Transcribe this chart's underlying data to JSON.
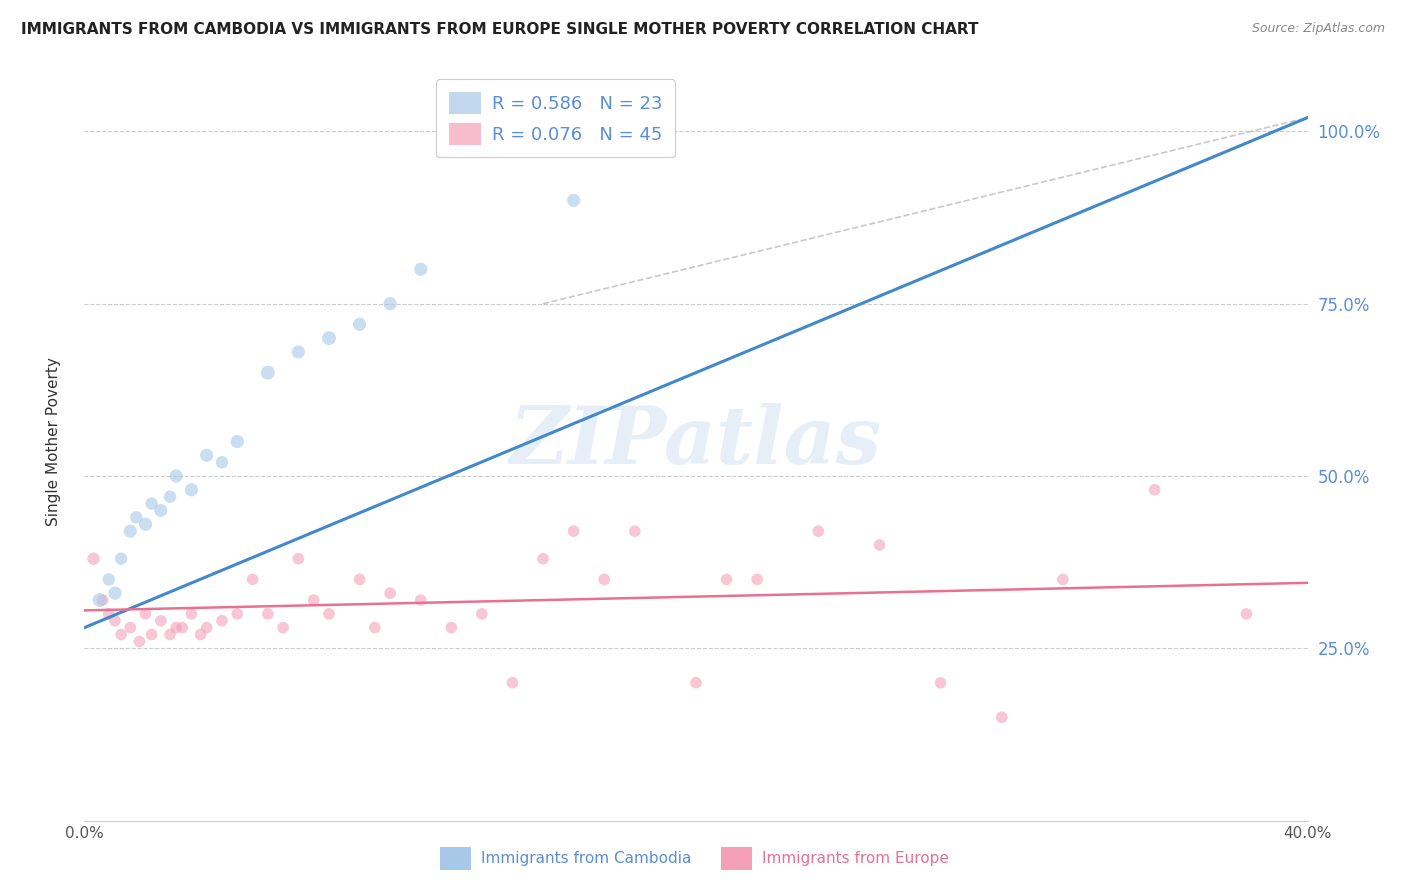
{
  "title": "IMMIGRANTS FROM CAMBODIA VS IMMIGRANTS FROM EUROPE SINGLE MOTHER POVERTY CORRELATION CHART",
  "source": "Source: ZipAtlas.com",
  "ylabel": "Single Mother Poverty",
  "right_yticks": [
    0.25,
    0.5,
    0.75,
    1.0
  ],
  "right_yticklabels": [
    "25.0%",
    "50.0%",
    "75.0%",
    "100.0%"
  ],
  "xlim": [
    0.0,
    0.4
  ],
  "ylim": [
    0.0,
    1.1
  ],
  "R_cambodia": 0.586,
  "N_cambodia": 23,
  "R_europe": 0.076,
  "N_europe": 45,
  "color_cambodia": "#a8c8e8",
  "color_europe": "#f4a0b8",
  "color_cambodia_line": "#4488cc",
  "color_europe_line": "#e87090",
  "color_diagonal": "#bbbbbb",
  "watermark": "ZIPatlas",
  "cambodia_x": [
    0.005,
    0.008,
    0.01,
    0.012,
    0.015,
    0.017,
    0.02,
    0.022,
    0.025,
    0.028,
    0.03,
    0.035,
    0.04,
    0.045,
    0.05,
    0.06,
    0.07,
    0.08,
    0.09,
    0.1,
    0.11,
    0.13,
    0.16
  ],
  "cambodia_y": [
    0.32,
    0.35,
    0.33,
    0.38,
    0.42,
    0.44,
    0.43,
    0.46,
    0.45,
    0.47,
    0.5,
    0.48,
    0.53,
    0.52,
    0.55,
    0.65,
    0.68,
    0.7,
    0.72,
    0.75,
    0.8,
    1.0,
    0.9
  ],
  "cambodia_sizes": [
    100,
    80,
    90,
    80,
    90,
    80,
    90,
    80,
    90,
    80,
    90,
    90,
    90,
    80,
    90,
    100,
    90,
    100,
    90,
    90,
    90,
    90,
    90
  ],
  "europe_x": [
    0.003,
    0.006,
    0.008,
    0.01,
    0.012,
    0.015,
    0.018,
    0.02,
    0.022,
    0.025,
    0.028,
    0.03,
    0.032,
    0.035,
    0.038,
    0.04,
    0.045,
    0.05,
    0.055,
    0.06,
    0.065,
    0.07,
    0.075,
    0.08,
    0.09,
    0.095,
    0.1,
    0.11,
    0.12,
    0.13,
    0.14,
    0.15,
    0.16,
    0.17,
    0.18,
    0.2,
    0.21,
    0.22,
    0.24,
    0.26,
    0.28,
    0.3,
    0.32,
    0.35,
    0.38
  ],
  "europe_y": [
    0.38,
    0.32,
    0.3,
    0.29,
    0.27,
    0.28,
    0.26,
    0.3,
    0.27,
    0.29,
    0.27,
    0.28,
    0.28,
    0.3,
    0.27,
    0.28,
    0.29,
    0.3,
    0.35,
    0.3,
    0.28,
    0.38,
    0.32,
    0.3,
    0.35,
    0.28,
    0.33,
    0.32,
    0.28,
    0.3,
    0.2,
    0.38,
    0.42,
    0.35,
    0.42,
    0.2,
    0.35,
    0.35,
    0.42,
    0.4,
    0.2,
    0.15,
    0.35,
    0.48,
    0.3
  ],
  "europe_sizes": [
    80,
    70,
    70,
    70,
    70,
    70,
    70,
    70,
    70,
    70,
    70,
    70,
    70,
    70,
    70,
    70,
    70,
    70,
    70,
    70,
    70,
    70,
    70,
    70,
    70,
    70,
    70,
    70,
    70,
    70,
    70,
    70,
    70,
    70,
    70,
    70,
    70,
    70,
    70,
    70,
    70,
    70,
    70,
    70,
    70
  ]
}
